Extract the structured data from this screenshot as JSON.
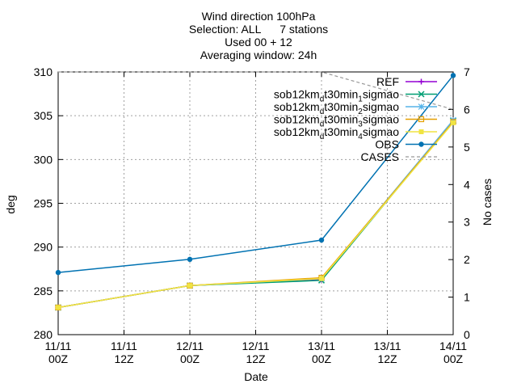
{
  "chart_data": {
    "type": "line",
    "title_lines": [
      "Wind direction 100hPa",
      "Selection: ALL      7 stations",
      "Used 00 + 12",
      "Averaging window: 24h"
    ],
    "xlabel": "Date",
    "ylabel": "deg",
    "y2label": "No cases",
    "x_ticks": [
      {
        "line1": "11/11",
        "line2": "00Z"
      },
      {
        "line1": "11/11",
        "line2": "12Z"
      },
      {
        "line1": "12/11",
        "line2": "00Z"
      },
      {
        "line1": "12/11",
        "line2": "12Z"
      },
      {
        "line1": "13/11",
        "line2": "00Z"
      },
      {
        "line1": "13/11",
        "line2": "12Z"
      },
      {
        "line1": "14/11",
        "line2": "00Z"
      }
    ],
    "xlim": [
      0,
      6
    ],
    "ylim": [
      280,
      310
    ],
    "y_ticks": [
      "280",
      "285",
      "290",
      "295",
      "300",
      "305",
      "310"
    ],
    "y2lim": [
      0,
      7
    ],
    "y2_ticks": [
      "0",
      "1",
      "2",
      "3",
      "4",
      "5",
      "6",
      "7"
    ],
    "grid": true,
    "legend_position": "top-right",
    "series": [
      {
        "name": "REF",
        "sub": "",
        "suffix": "",
        "color": "#9400d3",
        "marker": "plus",
        "x": [
          0,
          2,
          4,
          6
        ],
        "values": [
          283.1,
          285.6,
          286.3,
          304.4
        ]
      },
      {
        "name": "sob12km",
        "sub": "d",
        "suffix": "t30min",
        "sub2": "1",
        "suffix2": "sigmao",
        "color": "#009e73",
        "marker": "x",
        "x": [
          0,
          2,
          4,
          6
        ],
        "values": [
          283.1,
          285.6,
          286.2,
          304.4
        ]
      },
      {
        "name": "sob12km",
        "sub": "d",
        "suffix": "t30min",
        "sub2": "2",
        "suffix2": "sigmao",
        "color": "#56b4e9",
        "marker": "star",
        "x": [
          0,
          2,
          4,
          6
        ],
        "values": [
          283.1,
          285.6,
          286.4,
          304.5
        ]
      },
      {
        "name": "sob12km",
        "sub": "d",
        "suffix": "t30min",
        "sub2": "3",
        "suffix2": "sigmao",
        "color": "#e69f00",
        "marker": "square",
        "x": [
          0,
          2,
          4,
          6
        ],
        "values": [
          283.1,
          285.6,
          286.5,
          304.3
        ]
      },
      {
        "name": "sob12km",
        "sub": "d",
        "suffix": "t30min",
        "sub2": "4",
        "suffix2": "sigmao",
        "color": "#f0e442",
        "marker": "fsquare",
        "x": [
          0,
          2,
          4,
          6
        ],
        "values": [
          283.1,
          285.6,
          286.4,
          304.2
        ]
      },
      {
        "name": "OBS",
        "sub": "",
        "suffix": "",
        "color": "#0072b2",
        "marker": "circle",
        "x": [
          0,
          2,
          4,
          6
        ],
        "values": [
          287.1,
          288.6,
          290.8,
          309.6
        ]
      },
      {
        "name": "CASES",
        "sub": "",
        "suffix": "",
        "color": "#999999",
        "marker": "none",
        "dashed": true,
        "axis": "y2",
        "x": [
          0,
          4,
          6
        ],
        "values": [
          7,
          7,
          6
        ]
      }
    ]
  }
}
